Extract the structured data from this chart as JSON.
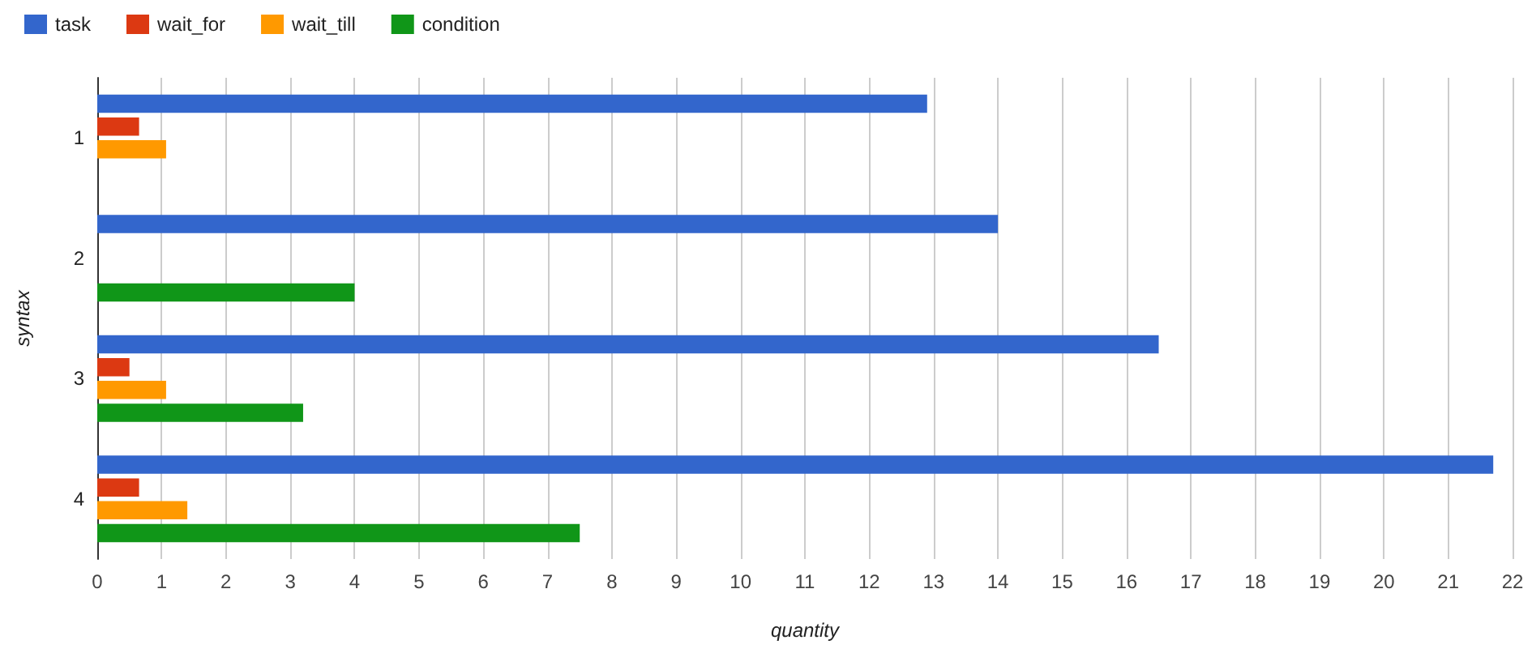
{
  "chart_data": {
    "type": "bar",
    "orientation": "horizontal",
    "xlabel": "quantity",
    "ylabel": "syntax",
    "categories": [
      "1",
      "2",
      "3",
      "4"
    ],
    "series": [
      {
        "name": "task",
        "color": "#3366cc",
        "values": [
          12.9,
          14.0,
          16.5,
          21.7
        ]
      },
      {
        "name": "wait_for",
        "color": "#dc3912",
        "values": [
          0.65,
          null,
          0.5,
          0.65
        ]
      },
      {
        "name": "wait_till",
        "color": "#ff9900",
        "values": [
          1.07,
          null,
          1.07,
          1.4
        ]
      },
      {
        "name": "condition",
        "color": "#109618",
        "values": [
          null,
          4,
          3.2,
          7.5
        ]
      }
    ],
    "xlim": [
      0,
      22
    ],
    "xticks": [
      0,
      1,
      2,
      3,
      4,
      5,
      6,
      7,
      8,
      9,
      10,
      11,
      12,
      13,
      14,
      15,
      16,
      17,
      18,
      19,
      20,
      21,
      22
    ],
    "grid": "x",
    "legend": "top left"
  }
}
